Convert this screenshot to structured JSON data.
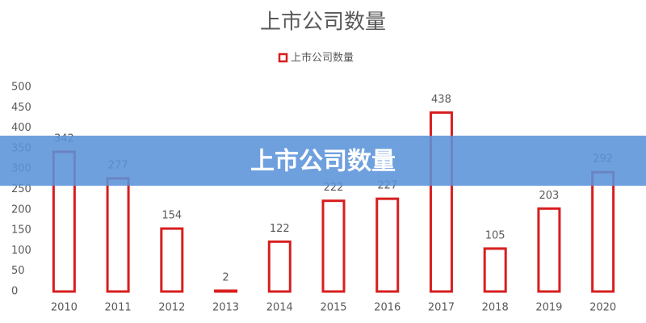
{
  "chart_data": {
    "type": "bar",
    "title": "上市公司数量",
    "categories": [
      "2010",
      "2011",
      "2012",
      "2013",
      "2014",
      "2015",
      "2016",
      "2017",
      "2018",
      "2019",
      "2020"
    ],
    "series": [
      {
        "name": "上市公司数量",
        "color": "#d81e1e",
        "values": [
          342,
          277,
          154,
          2,
          122,
          222,
          227,
          438,
          105,
          203,
          292
        ]
      }
    ],
    "ylim": [
      0,
      500
    ],
    "yticks": [
      0,
      50,
      100,
      150,
      200,
      250,
      300,
      350,
      400,
      450,
      500
    ],
    "grid": false,
    "legend": "top"
  },
  "overlay_title": "上市公司数量"
}
